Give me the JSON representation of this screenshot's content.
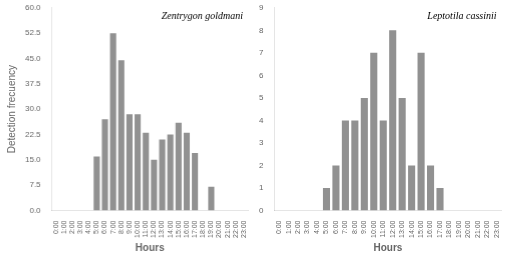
{
  "chart_data": [
    {
      "type": "bar",
      "annotations": [
        "Zentrygon goldmani"
      ],
      "x_label": "Hours",
      "y_label": "Detection frecuency",
      "categories": [
        "0:00",
        "1:00",
        "2:00",
        "3:00",
        "4:00",
        "5:00",
        "6:00",
        "7:00",
        "8:00",
        "9:00",
        "10:00",
        "11:00",
        "12:00",
        "13:00",
        "14:00",
        "15:00",
        "16:00",
        "17:00",
        "18:00",
        "19:00",
        "20:00",
        "21:00",
        "22:00",
        "23:00"
      ],
      "values": [
        0,
        0,
        0,
        0,
        0,
        16,
        27,
        52.5,
        44.5,
        28.5,
        28.5,
        23,
        15,
        21,
        22.5,
        26,
        23,
        17,
        0,
        7,
        0,
        0,
        0,
        0
      ],
      "color": "#919191",
      "ylim": [
        0,
        60
      ],
      "yticks": [
        {
          "value": 0,
          "label": "0.0"
        },
        7.5,
        {
          "value": 15,
          "label": "15.0"
        },
        22.5,
        {
          "value": 30,
          "label": "30.0"
        },
        37.5,
        {
          "value": 45,
          "label": "45.0"
        },
        52.5,
        {
          "value": 60,
          "label": "60.0"
        }
      ],
      "grid": false
    },
    {
      "type": "bar",
      "annotations": [
        "Leptotila cassinii"
      ],
      "x_label": "Hours",
      "categories": [
        "0:00",
        "1:00",
        "2:00",
        "3:00",
        "4:00",
        "5:00",
        "6:00",
        "7:00",
        "8:00",
        "9:00",
        "10:00",
        "11:00",
        "12:00",
        "13:00",
        "14:00",
        "15:00",
        "16:00",
        "17:00",
        "18:00",
        "19:00",
        "20:00",
        "21:00",
        "22:00",
        "23:00"
      ],
      "values": [
        0,
        0,
        0,
        0,
        0,
        1,
        2,
        4,
        4,
        5,
        7,
        4,
        8,
        5,
        2,
        7,
        2,
        1,
        0,
        0,
        0,
        0,
        0,
        0
      ],
      "color": "#919191",
      "ylim": [
        0,
        9
      ],
      "yticks": [
        0,
        1,
        2,
        3,
        4,
        5,
        6,
        7,
        8,
        9
      ],
      "grid": false
    }
  ]
}
